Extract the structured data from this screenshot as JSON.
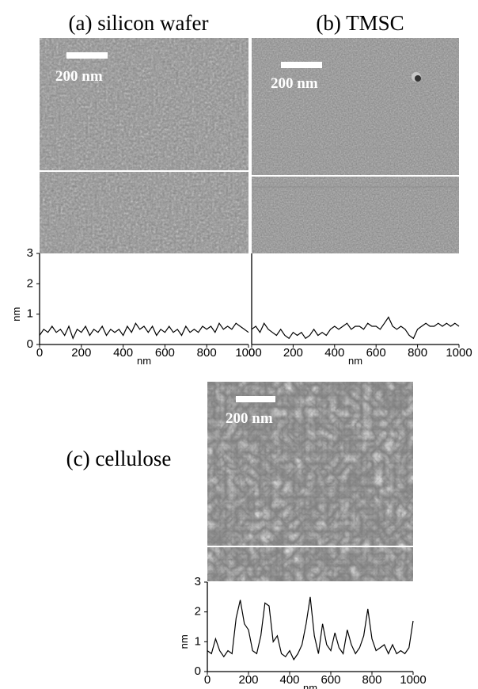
{
  "panels": [
    {
      "title": "(a) silicon wafer",
      "scale_label": "200 nm"
    },
    {
      "title": "(b) TMSC",
      "scale_label": "200 nm"
    },
    {
      "title": "(c) cellulose",
      "scale_label": "200 nm"
    }
  ],
  "chart_data": [
    {
      "type": "line",
      "x_label": "nm",
      "y_label": "nm",
      "color": "#000000",
      "x": [
        0,
        20,
        40,
        60,
        80,
        100,
        120,
        140,
        160,
        180,
        200,
        220,
        240,
        260,
        280,
        300,
        320,
        340,
        360,
        380,
        400,
        420,
        440,
        460,
        480,
        500,
        520,
        540,
        560,
        580,
        600,
        620,
        640,
        660,
        680,
        700,
        720,
        740,
        760,
        780,
        800,
        820,
        840,
        860,
        880,
        900,
        920,
        940,
        960,
        980,
        1000
      ],
      "values": [
        0.3,
        0.5,
        0.4,
        0.6,
        0.4,
        0.5,
        0.3,
        0.6,
        0.2,
        0.5,
        0.4,
        0.6,
        0.3,
        0.5,
        0.4,
        0.6,
        0.3,
        0.5,
        0.4,
        0.5,
        0.3,
        0.6,
        0.4,
        0.7,
        0.5,
        0.6,
        0.4,
        0.6,
        0.3,
        0.5,
        0.4,
        0.6,
        0.4,
        0.5,
        0.3,
        0.6,
        0.4,
        0.5,
        0.4,
        0.6,
        0.5,
        0.6,
        0.4,
        0.7,
        0.5,
        0.6,
        0.5,
        0.7,
        0.6,
        0.5,
        0.4
      ],
      "xlim": [
        0,
        1000
      ],
      "xticks": [
        0,
        200,
        400,
        600,
        800,
        1000
      ],
      "ylim": [
        0,
        3
      ],
      "yticks": [
        0,
        1,
        2,
        3
      ]
    },
    {
      "type": "line",
      "x_label": "nm",
      "color": "#000000",
      "x": [
        0,
        20,
        40,
        60,
        80,
        100,
        120,
        140,
        160,
        180,
        200,
        220,
        240,
        260,
        280,
        300,
        320,
        340,
        360,
        380,
        400,
        420,
        440,
        460,
        480,
        500,
        520,
        540,
        560,
        580,
        600,
        620,
        640,
        660,
        680,
        700,
        720,
        740,
        760,
        780,
        800,
        820,
        840,
        860,
        880,
        900,
        920,
        940,
        960,
        980,
        1000
      ],
      "values": [
        0.5,
        0.6,
        0.4,
        0.7,
        0.5,
        0.4,
        0.3,
        0.5,
        0.3,
        0.2,
        0.4,
        0.3,
        0.4,
        0.2,
        0.3,
        0.5,
        0.3,
        0.4,
        0.3,
        0.5,
        0.6,
        0.5,
        0.6,
        0.7,
        0.5,
        0.6,
        0.6,
        0.5,
        0.7,
        0.6,
        0.6,
        0.5,
        0.7,
        0.9,
        0.6,
        0.5,
        0.6,
        0.5,
        0.3,
        0.2,
        0.5,
        0.6,
        0.7,
        0.6,
        0.6,
        0.7,
        0.6,
        0.7,
        0.6,
        0.7,
        0.6
      ],
      "xlim": [
        0,
        1000
      ],
      "xticks": [
        0,
        200,
        400,
        600,
        800,
        1000
      ],
      "ylim": [
        0,
        3
      ]
    },
    {
      "type": "line",
      "x_label": "nm",
      "y_label": "nm",
      "color": "#000000",
      "x": [
        0,
        20,
        40,
        60,
        80,
        100,
        120,
        140,
        160,
        180,
        200,
        220,
        240,
        260,
        280,
        300,
        320,
        340,
        360,
        380,
        400,
        420,
        440,
        460,
        480,
        500,
        520,
        540,
        560,
        580,
        600,
        620,
        640,
        660,
        680,
        700,
        720,
        740,
        760,
        780,
        800,
        820,
        840,
        860,
        880,
        900,
        920,
        940,
        960,
        980,
        1000
      ],
      "values": [
        0.7,
        0.6,
        1.1,
        0.7,
        0.5,
        0.7,
        0.6,
        1.8,
        2.4,
        1.6,
        1.4,
        0.7,
        0.6,
        1.2,
        2.3,
        2.2,
        1.0,
        1.2,
        0.6,
        0.5,
        0.7,
        0.4,
        0.6,
        0.9,
        1.6,
        2.5,
        1.2,
        0.6,
        1.6,
        0.9,
        0.7,
        1.3,
        0.8,
        0.6,
        1.4,
        0.9,
        0.6,
        0.8,
        1.2,
        2.1,
        1.1,
        0.7,
        0.8,
        0.9,
        0.6,
        0.9,
        0.6,
        0.7,
        0.6,
        0.8,
        1.7
      ],
      "xlim": [
        0,
        1000
      ],
      "xticks": [
        0,
        200,
        400,
        600,
        800,
        1000
      ],
      "ylim": [
        0,
        3
      ],
      "yticks": [
        0,
        1,
        2,
        3
      ]
    }
  ]
}
